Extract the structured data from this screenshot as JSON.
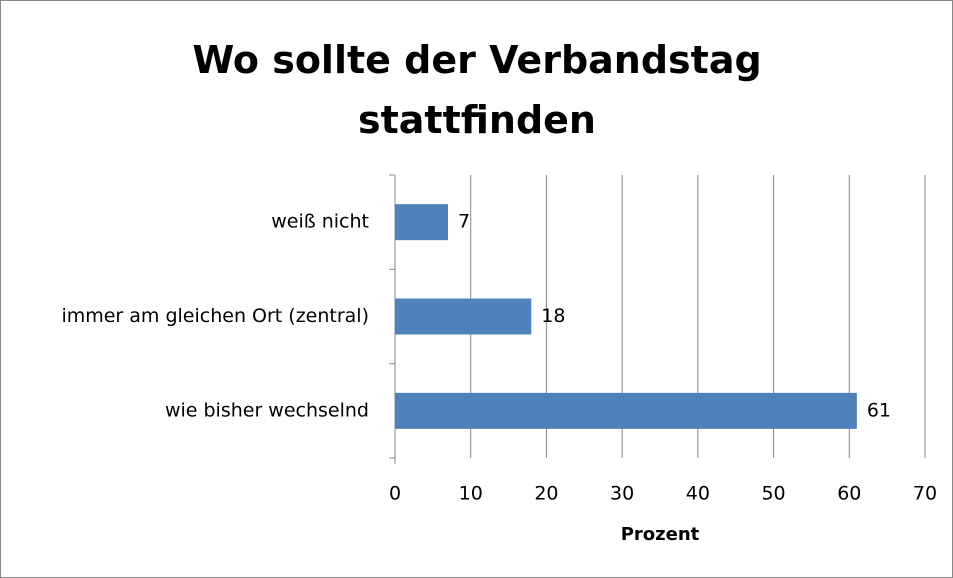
{
  "chart_data": {
    "type": "barh",
    "title": "Wo sollte der Verbandstag stattfinden",
    "categories": [
      "weiß nicht",
      "immer am gleichen Ort (zentral)",
      "wie bisher wechselnd"
    ],
    "values": [
      7,
      18,
      61
    ],
    "color": "#4f81bd",
    "xlabel": "Prozent",
    "xlim": [
      0,
      70
    ],
    "xticks": [
      0,
      10,
      20,
      30,
      40,
      50,
      60,
      70
    ],
    "grid": true
  }
}
